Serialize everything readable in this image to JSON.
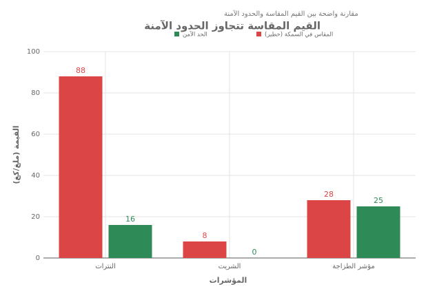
{
  "chart_data": {
    "type": "bar",
    "title": "القيم المقاسة تتجاوز الحدود الآمنة",
    "subtitle": "مقارنة واضحة بين القيم المقاسة والحدود الآمنة",
    "x_label": "المؤشرات",
    "y_label": "القيمة (ملغ/كغ)",
    "categories": [
      "النترات",
      "الشريت",
      "مؤشر الطزاجة"
    ],
    "series": [
      {
        "name": "المقاس في السمكة (خطير)",
        "color": "#dc4545",
        "values": [
          88,
          8,
          28
        ]
      },
      {
        "name": "الحد الآمن",
        "color": "#2e8b57",
        "values": [
          16,
          0,
          25
        ]
      }
    ],
    "ylim": [
      0,
      100
    ],
    "yticks": [
      0,
      20,
      40,
      60,
      80,
      100
    ],
    "grid": true
  }
}
